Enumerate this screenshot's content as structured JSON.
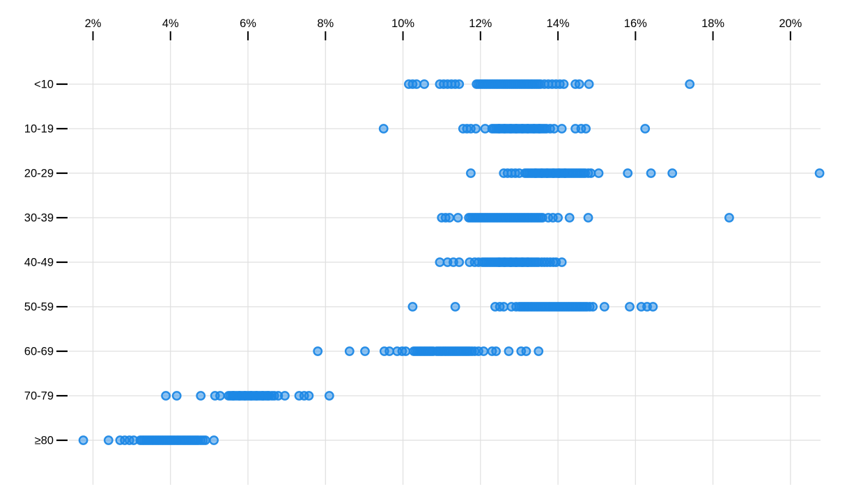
{
  "chart_data": {
    "type": "scatter",
    "variant": "strip-plot",
    "title": "",
    "x_axis": {
      "orientation": "top",
      "tick_values": [
        2,
        4,
        6,
        8,
        10,
        12,
        14,
        16,
        18,
        20
      ],
      "tick_labels": [
        "2%",
        "4%",
        "6%",
        "8%",
        "10%",
        "12%",
        "14%",
        "16%",
        "18%",
        "20%"
      ],
      "xlim": [
        1.4,
        21.5
      ],
      "grid": true
    },
    "y_axis": {
      "categories": [
        "<10",
        "10-19",
        "20-29",
        "30-39",
        "40-49",
        "50-59",
        "60-69",
        "70-79",
        "≥80"
      ],
      "grid": true
    },
    "legend": null,
    "series": [
      {
        "category": "<10",
        "values": [
          10.15,
          10.25,
          10.35,
          10.55,
          10.95,
          11.05,
          11.15,
          11.25,
          11.35,
          11.45,
          11.9,
          11.95,
          12.0,
          12.05,
          12.1,
          12.15,
          12.2,
          12.25,
          12.3,
          12.35,
          12.4,
          12.45,
          12.5,
          12.55,
          12.6,
          12.65,
          12.7,
          12.75,
          12.8,
          12.85,
          12.9,
          12.95,
          13.0,
          13.05,
          13.1,
          13.15,
          13.2,
          13.25,
          13.3,
          13.35,
          13.4,
          13.45,
          13.5,
          13.55,
          13.65,
          13.75,
          13.85,
          13.95,
          14.05,
          14.15,
          14.45,
          14.55,
          14.8,
          17.4
        ]
      },
      {
        "category": "10-19",
        "values": [
          9.5,
          11.55,
          11.65,
          11.75,
          11.88,
          12.12,
          12.3,
          12.35,
          12.4,
          12.45,
          12.48,
          12.5,
          12.55,
          12.6,
          12.62,
          12.65,
          12.7,
          12.75,
          12.78,
          12.8,
          12.85,
          12.9,
          12.92,
          12.95,
          13.0,
          13.05,
          13.08,
          13.1,
          13.15,
          13.2,
          13.22,
          13.25,
          13.3,
          13.35,
          13.38,
          13.4,
          13.45,
          13.5,
          13.52,
          13.55,
          13.6,
          13.65,
          13.7,
          13.8,
          13.9,
          14.1,
          14.45,
          14.6,
          14.72,
          16.25
        ]
      },
      {
        "category": "20-29",
        "values": [
          11.75,
          12.6,
          12.7,
          12.8,
          12.9,
          13.0,
          13.15,
          13.2,
          13.25,
          13.3,
          13.35,
          13.4,
          13.42,
          13.45,
          13.5,
          13.55,
          13.58,
          13.6,
          13.65,
          13.7,
          13.72,
          13.75,
          13.8,
          13.85,
          13.88,
          13.9,
          13.95,
          14.0,
          14.02,
          14.05,
          14.1,
          14.15,
          14.18,
          14.2,
          14.25,
          14.3,
          14.35,
          14.4,
          14.45,
          14.5,
          14.55,
          14.6,
          14.65,
          14.7,
          14.78,
          14.85,
          15.05,
          15.8,
          16.4,
          16.95,
          20.75
        ]
      },
      {
        "category": "30-39",
        "values": [
          11.0,
          11.1,
          11.2,
          11.42,
          11.7,
          11.75,
          11.8,
          11.85,
          11.9,
          11.95,
          12.0,
          12.05,
          12.1,
          12.15,
          12.2,
          12.25,
          12.3,
          12.35,
          12.4,
          12.45,
          12.5,
          12.55,
          12.6,
          12.65,
          12.7,
          12.75,
          12.8,
          12.85,
          12.9,
          12.95,
          13.0,
          13.05,
          13.1,
          13.15,
          13.2,
          13.25,
          13.3,
          13.35,
          13.4,
          13.45,
          13.5,
          13.55,
          13.6,
          13.75,
          13.87,
          14.0,
          14.3,
          14.78,
          18.42
        ]
      },
      {
        "category": "40-49",
        "values": [
          10.95,
          11.15,
          11.3,
          11.45,
          11.72,
          11.85,
          11.95,
          12.05,
          12.1,
          12.15,
          12.2,
          12.25,
          12.3,
          12.35,
          12.4,
          12.45,
          12.48,
          12.5,
          12.55,
          12.6,
          12.62,
          12.65,
          12.7,
          12.75,
          12.78,
          12.8,
          12.85,
          12.9,
          12.92,
          12.95,
          13.0,
          13.05,
          13.08,
          13.1,
          13.15,
          13.2,
          13.22,
          13.25,
          13.3,
          13.35,
          13.4,
          13.45,
          13.5,
          13.58,
          13.65,
          13.72,
          13.8,
          13.88,
          13.95,
          14.1
        ]
      },
      {
        "category": "50-59",
        "values": [
          10.25,
          11.35,
          12.38,
          12.5,
          12.6,
          12.8,
          12.92,
          13.0,
          13.05,
          13.1,
          13.15,
          13.2,
          13.25,
          13.3,
          13.35,
          13.4,
          13.45,
          13.5,
          13.55,
          13.6,
          13.65,
          13.7,
          13.75,
          13.8,
          13.85,
          13.9,
          13.95,
          14.0,
          14.05,
          14.1,
          14.15,
          14.2,
          14.25,
          14.3,
          14.35,
          14.4,
          14.45,
          14.5,
          14.55,
          14.6,
          14.65,
          14.7,
          14.75,
          14.82,
          14.9,
          15.2,
          15.85,
          16.15,
          16.3,
          16.45
        ]
      },
      {
        "category": "60-69",
        "values": [
          7.8,
          8.62,
          9.02,
          9.52,
          9.65,
          9.85,
          9.98,
          10.07,
          10.28,
          10.33,
          10.38,
          10.43,
          10.48,
          10.53,
          10.58,
          10.63,
          10.68,
          10.73,
          10.78,
          10.87,
          10.92,
          10.97,
          11.02,
          11.07,
          11.12,
          11.17,
          11.22,
          11.27,
          11.32,
          11.37,
          11.42,
          11.47,
          11.52,
          11.57,
          11.62,
          11.67,
          11.72,
          11.78,
          11.85,
          11.95,
          12.08,
          12.3,
          12.4,
          12.73,
          13.05,
          13.18,
          13.5
        ]
      },
      {
        "category": "70-79",
        "values": [
          3.88,
          4.16,
          4.78,
          5.15,
          5.28,
          5.5,
          5.55,
          5.6,
          5.62,
          5.65,
          5.7,
          5.75,
          5.78,
          5.8,
          5.85,
          5.9,
          5.92,
          5.95,
          6.0,
          6.05,
          6.08,
          6.1,
          6.15,
          6.2,
          6.22,
          6.25,
          6.3,
          6.35,
          6.38,
          6.4,
          6.45,
          6.5,
          6.52,
          6.55,
          6.62,
          6.68,
          6.78,
          6.95,
          7.32,
          7.45,
          7.57,
          8.1
        ]
      },
      {
        "category": "≥80",
        "values": [
          1.75,
          2.4,
          2.7,
          2.82,
          2.94,
          3.05,
          3.22,
          3.27,
          3.32,
          3.37,
          3.42,
          3.47,
          3.52,
          3.57,
          3.62,
          3.67,
          3.72,
          3.77,
          3.82,
          3.87,
          3.92,
          3.97,
          4.02,
          4.07,
          4.12,
          4.17,
          4.22,
          4.27,
          4.32,
          4.37,
          4.42,
          4.47,
          4.52,
          4.57,
          4.62,
          4.67,
          4.72,
          4.78,
          4.84,
          4.9,
          5.12
        ]
      }
    ],
    "point_style": {
      "fill": "#1e88e5",
      "fill_opacity": 0.5,
      "stroke": "#1e88e5",
      "stroke_opacity": 0.95,
      "radius": 5.7,
      "stroke_width": 2.4
    },
    "colors": {
      "grid": "#dfdfdf",
      "axis_text": "#000000",
      "tick_mark": "#000000",
      "background": "#ffffff"
    }
  }
}
